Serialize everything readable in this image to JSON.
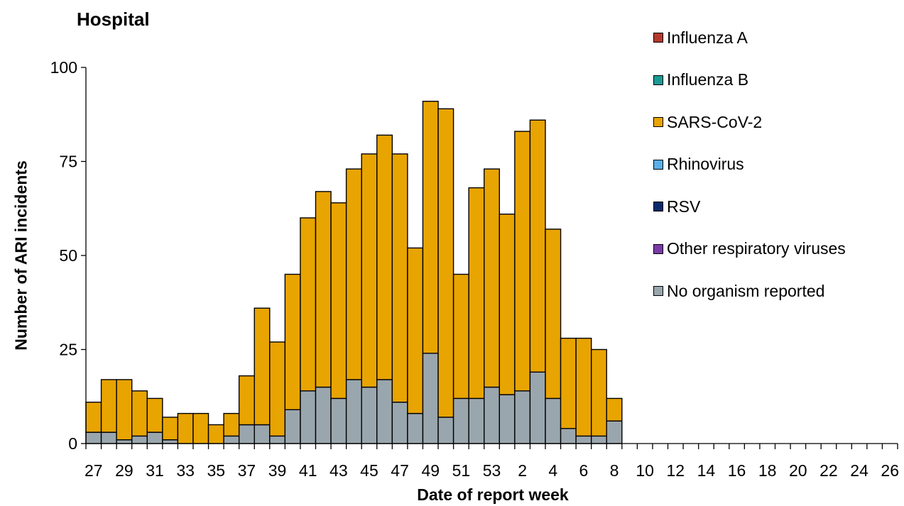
{
  "chart_data": {
    "type": "bar",
    "stacked": true,
    "title": "Hospital",
    "xlabel": "Date of report week",
    "ylabel": "Number of ARI incidents",
    "ylim": [
      0,
      100
    ],
    "yticks": [
      0,
      25,
      50,
      75,
      100
    ],
    "grid": false,
    "legend_position": "right",
    "categories": [
      "27",
      "28",
      "29",
      "30",
      "31",
      "32",
      "33",
      "34",
      "35",
      "36",
      "37",
      "38",
      "39",
      "40",
      "41",
      "42",
      "43",
      "44",
      "45",
      "46",
      "47",
      "48",
      "49",
      "50",
      "51",
      "52",
      "53",
      "1",
      "2",
      "3",
      "4",
      "5",
      "6",
      "7",
      "8",
      "9",
      "10",
      "11",
      "12",
      "13",
      "14",
      "15",
      "16",
      "17",
      "18",
      "19",
      "20",
      "21",
      "22",
      "23",
      "24",
      "25",
      "26"
    ],
    "tick_labels": [
      "27",
      "29",
      "31",
      "33",
      "35",
      "37",
      "39",
      "41",
      "43",
      "45",
      "47",
      "49",
      "51",
      "53",
      "2",
      "4",
      "6",
      "8",
      "10",
      "12",
      "14",
      "16",
      "18",
      "20",
      "22",
      "24",
      "26"
    ],
    "series": [
      {
        "name": "Influenza A",
        "color": "#b5392d",
        "values": [
          0,
          0,
          0,
          0,
          0,
          0,
          0,
          0,
          0,
          0,
          0,
          0,
          0,
          0,
          0,
          0,
          0,
          0,
          0,
          0,
          0,
          0,
          0,
          0,
          0,
          0,
          0,
          0,
          0,
          0,
          0,
          0,
          0,
          0,
          0,
          0,
          0,
          0,
          0,
          0,
          0,
          0,
          0,
          0,
          0,
          0,
          0,
          0,
          0,
          0,
          0,
          0,
          0
        ]
      },
      {
        "name": "Influenza B",
        "color": "#1a9a93",
        "values": [
          0,
          0,
          0,
          0,
          0,
          0,
          0,
          0,
          0,
          0,
          0,
          0,
          0,
          0,
          0,
          0,
          0,
          0,
          0,
          0,
          0,
          0,
          0,
          0,
          0,
          0,
          0,
          0,
          0,
          0,
          0,
          0,
          0,
          0,
          0,
          0,
          0,
          0,
          0,
          0,
          0,
          0,
          0,
          0,
          0,
          0,
          0,
          0,
          0,
          0,
          0,
          0,
          0
        ]
      },
      {
        "name": "SARS-CoV-2",
        "color": "#e8a400",
        "values": [
          8,
          14,
          16,
          12,
          9,
          6,
          8,
          8,
          5,
          6,
          13,
          31,
          25,
          36,
          46,
          52,
          52,
          56,
          62,
          65,
          66,
          44,
          67,
          82,
          33,
          56,
          58,
          48,
          69,
          67,
          45,
          24,
          26,
          23,
          6,
          0,
          0,
          0,
          0,
          0,
          0,
          0,
          0,
          0,
          0,
          0,
          0,
          0,
          0,
          0,
          0,
          0,
          0
        ]
      },
      {
        "name": "Rhinovirus",
        "color": "#5baee8",
        "values": [
          0,
          0,
          0,
          0,
          0,
          0,
          0,
          0,
          0,
          0,
          0,
          0,
          0,
          0,
          0,
          0,
          0,
          0,
          0,
          0,
          0,
          0,
          0,
          0,
          0,
          0,
          0,
          0,
          0,
          0,
          0,
          0,
          0,
          0,
          0,
          0,
          0,
          0,
          0,
          0,
          0,
          0,
          0,
          0,
          0,
          0,
          0,
          0,
          0,
          0,
          0,
          0,
          0
        ]
      },
      {
        "name": "RSV",
        "color": "#0b2a6b",
        "values": [
          0,
          0,
          0,
          0,
          0,
          0,
          0,
          0,
          0,
          0,
          0,
          0,
          0,
          0,
          0,
          0,
          0,
          0,
          0,
          0,
          0,
          0,
          0,
          0,
          0,
          0,
          0,
          0,
          0,
          0,
          0,
          0,
          0,
          0,
          0,
          0,
          0,
          0,
          0,
          0,
          0,
          0,
          0,
          0,
          0,
          0,
          0,
          0,
          0,
          0,
          0,
          0,
          0
        ]
      },
      {
        "name": "Other respiratory viruses",
        "color": "#7a3aa8",
        "values": [
          0,
          0,
          0,
          0,
          0,
          0,
          0,
          0,
          0,
          0,
          0,
          0,
          0,
          0,
          0,
          0,
          0,
          0,
          0,
          0,
          0,
          0,
          0,
          0,
          0,
          0,
          0,
          0,
          0,
          0,
          0,
          0,
          0,
          0,
          0,
          0,
          0,
          0,
          0,
          0,
          0,
          0,
          0,
          0,
          0,
          0,
          0,
          0,
          0,
          0,
          0,
          0,
          0
        ]
      },
      {
        "name": "No organism reported",
        "color": "#9aa6ae",
        "values": [
          3,
          3,
          1,
          2,
          3,
          1,
          0,
          0,
          0,
          2,
          5,
          5,
          2,
          9,
          14,
          15,
          12,
          17,
          15,
          17,
          11,
          8,
          24,
          7,
          12,
          12,
          15,
          13,
          14,
          19,
          12,
          4,
          2,
          2,
          6,
          0,
          0,
          0,
          0,
          0,
          0,
          0,
          0,
          0,
          0,
          0,
          0,
          0,
          0,
          0,
          0,
          0,
          0
        ]
      }
    ],
    "stack_order_bottom_to_top": [
      "No organism reported",
      "Other respiratory viruses",
      "RSV",
      "Rhinovirus",
      "SARS-CoV-2",
      "Influenza B",
      "Influenza A"
    ]
  }
}
